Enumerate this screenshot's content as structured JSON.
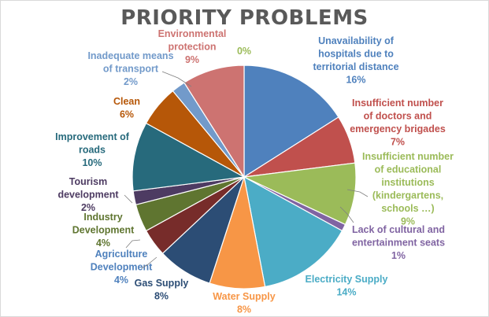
{
  "chart_data": {
    "type": "pie",
    "title": "PRIORITY PROBLEMS",
    "slices": [
      {
        "label": "Unavailability of hospitals due to territorial distance",
        "lines": [
          "Unavailability of",
          "hospitals due to",
          "territorial distance"
        ],
        "value": 16,
        "display": "16%",
        "color": "#4f81bd",
        "label_color": "#4f81bd"
      },
      {
        "label": "Insufficient number of doctors and emergency brigades",
        "lines": [
          "Insufficient number",
          "of doctors and",
          "emergency brigades"
        ],
        "value": 7,
        "display": "7%",
        "color": "#c0504d",
        "label_color": "#c0504d"
      },
      {
        "label": "Insufficient number of educational institutions (kindergartens, schools …)",
        "lines": [
          "Insufficient number",
          "of educational",
          "institutions",
          "(kindergartens,",
          "schools …)"
        ],
        "value": 9,
        "display": "9%",
        "color": "#9bbb59",
        "label_color": "#9bbb59"
      },
      {
        "label": "Lack of cultural and entertainment seats",
        "lines": [
          "Lack of cultural and",
          "entertainment seats"
        ],
        "value": 1,
        "display": "1%",
        "color": "#8064a2",
        "label_color": "#8064a2"
      },
      {
        "label": "Electricity Supply",
        "lines": [
          "Electricity Supply"
        ],
        "value": 14,
        "display": "14%",
        "color": "#4bacc6",
        "label_color": "#4bacc6"
      },
      {
        "label": "Water Supply",
        "lines": [
          "Water Supply"
        ],
        "value": 8,
        "display": "8%",
        "color": "#f79646",
        "label_color": "#f79646"
      },
      {
        "label": "Gas Supply",
        "lines": [
          "Gas Supply"
        ],
        "value": 8,
        "display": "8%",
        "color": "#2c4d75",
        "label_color": "#2c4d75"
      },
      {
        "label": "Agriculture Development",
        "lines": [
          "Agriculture",
          "Development"
        ],
        "value": 4,
        "display": "4%",
        "color": "#772c2a",
        "label_color": "#4f81bd"
      },
      {
        "label": "Industry Development",
        "lines": [
          "Industry",
          "Development"
        ],
        "value": 4,
        "display": "4%",
        "color": "#5f7530",
        "label_color": "#5f7530"
      },
      {
        "label": "Tourism development",
        "lines": [
          "Tourism",
          "development"
        ],
        "value": 2,
        "display": "2%",
        "color": "#4d3b62",
        "label_color": "#4d3b62"
      },
      {
        "label": "Improvement of roads",
        "lines": [
          "Improvement of",
          "roads"
        ],
        "value": 10,
        "display": "10%",
        "color": "#276a7c",
        "label_color": "#276a7c"
      },
      {
        "label": "Clean",
        "lines": [
          "Clean"
        ],
        "value": 6,
        "display": "6%",
        "color": "#b65708",
        "label_color": "#b65708"
      },
      {
        "label": "Inadequate means of transport",
        "lines": [
          "Inadequate means",
          "of transport"
        ],
        "value": 2,
        "display": "2%",
        "color": "#729aca",
        "label_color": "#729aca"
      },
      {
        "label": "Environmental protection",
        "lines": [
          "Environmental",
          "protection"
        ],
        "value": 9,
        "display": "9%",
        "color": "#cd7371",
        "label_color": "#cd7371"
      },
      {
        "label": "",
        "lines": [],
        "value": 0,
        "display": "0%",
        "color": "#9bbb59",
        "label_color": "#9bbb59"
      }
    ],
    "legend": "none",
    "data_labels": "outside with category name and percentage"
  }
}
